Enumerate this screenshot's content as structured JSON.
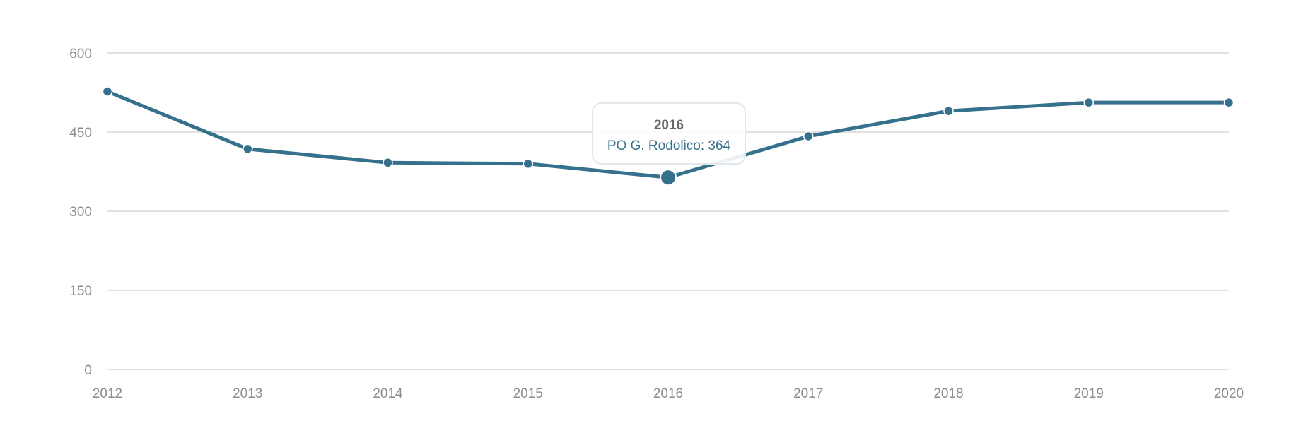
{
  "colors": {
    "series": "#35708c",
    "grid": "#cfcfcf",
    "tick_text": "#8c8c8c",
    "tooltip_title": "#666666",
    "tooltip_border": "#e3e8ec"
  },
  "chart_data": {
    "type": "line",
    "x": [
      "2012",
      "2013",
      "2014",
      "2015",
      "2016",
      "2017",
      "2018",
      "2019",
      "2020"
    ],
    "series": [
      {
        "name": "PO G. Rodolico",
        "values": [
          527,
          418,
          392,
          390,
          364,
          442,
          490,
          506,
          506
        ]
      }
    ],
    "title": "",
    "xlabel": "",
    "ylabel": "",
    "ylim": [
      0,
      600
    ],
    "yticks": [
      "0",
      "150",
      "300",
      "450",
      "600"
    ],
    "grid": true,
    "legend": "none",
    "highlighted_index": 4
  },
  "tooltip": {
    "title": "2016",
    "text": "PO G. Rodolico: 364"
  }
}
